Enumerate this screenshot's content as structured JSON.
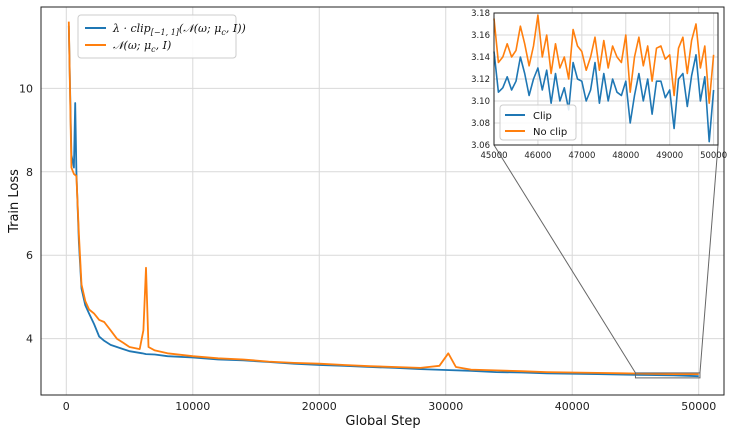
{
  "chart_data": [
    {
      "type": "line",
      "xlabel": "Global Step",
      "ylabel": "Train Loss",
      "xlim": [
        -2000,
        52000
      ],
      "ylim": [
        2.65,
        11.95
      ],
      "xticks": [
        0,
        10000,
        20000,
        30000,
        40000,
        50000
      ],
      "xtick_labels": [
        "0",
        "10000",
        "20000",
        "30000",
        "40000",
        "50000"
      ],
      "yticks": [
        4,
        6,
        8,
        10
      ],
      "ytick_labels": [
        "4",
        "6",
        "8",
        "10"
      ],
      "grid": true,
      "legend_position": "top-left",
      "series": [
        {
          "name": "λ · clip[−1, 1](𝒩(ω; μc, I))",
          "legend_math": {
            "pre": "λ · clip",
            "sub": "[−1, 1]",
            "post": "(𝒩(ω; μ",
            "sub2": "c",
            "end": ", I))"
          },
          "color": "#1f77b4",
          "x": [
            200,
            400,
            600,
            700,
            800,
            1000,
            1200,
            1500,
            1800,
            2200,
            2600,
            3000,
            3500,
            4000,
            4500,
            5000,
            6000,
            6300,
            7000,
            8000,
            10000,
            12000,
            14000,
            16000,
            18000,
            20000,
            22000,
            24000,
            26000,
            28000,
            30000,
            32000,
            34000,
            36000,
            38000,
            40000,
            42000,
            44000,
            46000,
            48000,
            50000
          ],
          "y": [
            11.5,
            8.4,
            8.1,
            9.65,
            8.0,
            6.3,
            5.2,
            4.8,
            4.6,
            4.35,
            4.05,
            3.95,
            3.85,
            3.8,
            3.75,
            3.7,
            3.65,
            3.63,
            3.62,
            3.58,
            3.55,
            3.5,
            3.48,
            3.44,
            3.4,
            3.37,
            3.35,
            3.32,
            3.3,
            3.27,
            3.25,
            3.23,
            3.2,
            3.19,
            3.17,
            3.16,
            3.15,
            3.14,
            3.13,
            3.12,
            3.1
          ]
        },
        {
          "name": "𝒩(ω; μc, I)",
          "legend_math": {
            "pre": "𝒩(ω; μ",
            "sub": "c",
            "post": ", I)"
          },
          "color": "#ff7f0e",
          "x": [
            200,
            400,
            600,
            800,
            1000,
            1200,
            1500,
            1800,
            2200,
            2600,
            3000,
            3500,
            4000,
            4500,
            5000,
            5800,
            6100,
            6300,
            6500,
            7000,
            8000,
            10000,
            12000,
            14000,
            16000,
            18000,
            20000,
            22000,
            24000,
            26000,
            28000,
            29500,
            30200,
            30800,
            32000,
            34000,
            36000,
            38000,
            40000,
            42000,
            44000,
            46000,
            48000,
            50000
          ],
          "y": [
            11.6,
            8.1,
            7.95,
            7.9,
            6.5,
            5.3,
            4.9,
            4.7,
            4.6,
            4.45,
            4.4,
            4.2,
            4.0,
            3.9,
            3.8,
            3.75,
            4.2,
            5.7,
            3.8,
            3.72,
            3.65,
            3.58,
            3.53,
            3.5,
            3.45,
            3.42,
            3.4,
            3.37,
            3.34,
            3.32,
            3.3,
            3.35,
            3.65,
            3.32,
            3.26,
            3.24,
            3.22,
            3.2,
            3.19,
            3.18,
            3.17,
            3.16,
            3.15,
            3.15
          ]
        }
      ]
    },
    {
      "type": "line",
      "role": "zoomed inset",
      "xlim": [
        45000,
        50100
      ],
      "ylim": [
        3.06,
        3.18
      ],
      "xticks": [
        45000,
        46000,
        47000,
        48000,
        49000,
        50000
      ],
      "xtick_labels": [
        "45000",
        "46000",
        "47000",
        "48000",
        "49000",
        "50000"
      ],
      "yticks": [
        3.06,
        3.08,
        3.1,
        3.12,
        3.14,
        3.16,
        3.18
      ],
      "ytick_labels": [
        "3.06",
        "3.08",
        "3.10",
        "3.12",
        "3.14",
        "3.16",
        "3.18"
      ],
      "grid": true,
      "legend_position": "bottom-left",
      "series": [
        {
          "name": "Clip",
          "color": "#1f77b4",
          "x": [
            45000,
            45100,
            45200,
            45300,
            45400,
            45500,
            45600,
            45700,
            45800,
            45900,
            46000,
            46100,
            46200,
            46300,
            46400,
            46500,
            46600,
            46700,
            46800,
            46900,
            47000,
            47100,
            47200,
            47300,
            47400,
            47500,
            47600,
            47700,
            47800,
            47900,
            48000,
            48100,
            48200,
            48300,
            48400,
            48500,
            48600,
            48700,
            48800,
            48900,
            49000,
            49100,
            49200,
            49300,
            49400,
            49500,
            49600,
            49700,
            49800,
            49900,
            50000
          ],
          "y": [
            3.145,
            3.108,
            3.112,
            3.122,
            3.11,
            3.118,
            3.14,
            3.125,
            3.105,
            3.12,
            3.13,
            3.11,
            3.128,
            3.098,
            3.125,
            3.1,
            3.112,
            3.092,
            3.135,
            3.12,
            3.118,
            3.1,
            3.11,
            3.135,
            3.098,
            3.125,
            3.1,
            3.12,
            3.108,
            3.105,
            3.118,
            3.08,
            3.105,
            3.125,
            3.1,
            3.12,
            3.088,
            3.118,
            3.118,
            3.103,
            3.11,
            3.075,
            3.12,
            3.125,
            3.095,
            3.123,
            3.142,
            3.1,
            3.122,
            3.063,
            3.11
          ]
        },
        {
          "name": "No clip",
          "color": "#ff7f0e",
          "x": [
            45000,
            45100,
            45200,
            45300,
            45400,
            45500,
            45600,
            45700,
            45800,
            45900,
            46000,
            46100,
            46200,
            46300,
            46400,
            46500,
            46600,
            46700,
            46800,
            46900,
            47000,
            47100,
            47200,
            47300,
            47400,
            47500,
            47600,
            47700,
            47800,
            47900,
            48000,
            48100,
            48200,
            48300,
            48400,
            48500,
            48600,
            48700,
            48800,
            48900,
            49000,
            49100,
            49200,
            49300,
            49400,
            49500,
            49600,
            49700,
            49800,
            49900,
            50000
          ],
          "y": [
            3.175,
            3.135,
            3.14,
            3.152,
            3.14,
            3.146,
            3.168,
            3.152,
            3.132,
            3.15,
            3.178,
            3.14,
            3.16,
            3.125,
            3.152,
            3.13,
            3.14,
            3.12,
            3.165,
            3.15,
            3.145,
            3.128,
            3.14,
            3.158,
            3.128,
            3.155,
            3.13,
            3.15,
            3.14,
            3.135,
            3.16,
            3.108,
            3.14,
            3.158,
            3.132,
            3.15,
            3.118,
            3.148,
            3.15,
            3.138,
            3.142,
            3.105,
            3.148,
            3.158,
            3.125,
            3.155,
            3.17,
            3.13,
            3.15,
            3.098,
            3.142
          ]
        }
      ]
    }
  ]
}
